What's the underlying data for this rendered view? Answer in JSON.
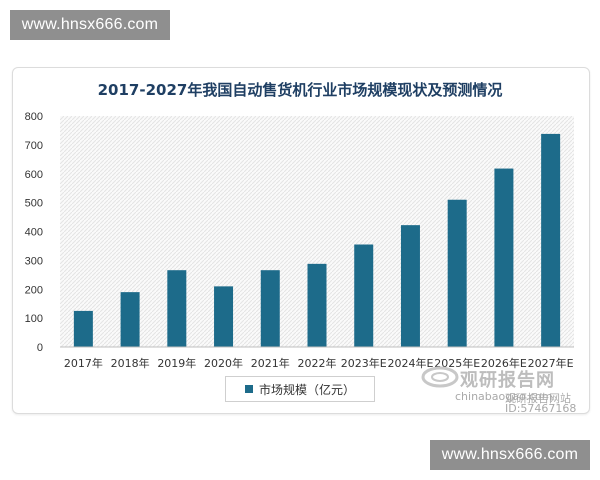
{
  "watermark": {
    "top_text": "www.hnsx666.com",
    "bottom_text": "www.hnsx666.com"
  },
  "logo": {
    "name": "观研报告网",
    "url_text": "chinabaogao.com",
    "site_text": "观研报告网站",
    "id_text": "ID:57467168"
  },
  "colors": {
    "bar": "#1d6b8a",
    "title": "#1f3f63",
    "grid_pattern": "#e4e4e4"
  },
  "chart_data": {
    "type": "bar",
    "title": "2017-2027年我国自动售货机行业市场规模现状及预测情况",
    "categories": [
      "2017年",
      "2018年",
      "2019年",
      "2020年",
      "2021年",
      "2022年",
      "2023年E",
      "2024年E",
      "2025年E",
      "2026年E",
      "2027年E"
    ],
    "series": [
      {
        "name": "市场规模（亿元）",
        "values": [
          125,
          190,
          266,
          210,
          266,
          288,
          355,
          422,
          510,
          618,
          738
        ]
      }
    ],
    "yticks": [
      0,
      100,
      200,
      300,
      400,
      500,
      600,
      700,
      800
    ],
    "ylim": [
      0,
      800
    ],
    "xlabel": "",
    "ylabel": "",
    "grid": false,
    "legend_position": "bottom"
  }
}
